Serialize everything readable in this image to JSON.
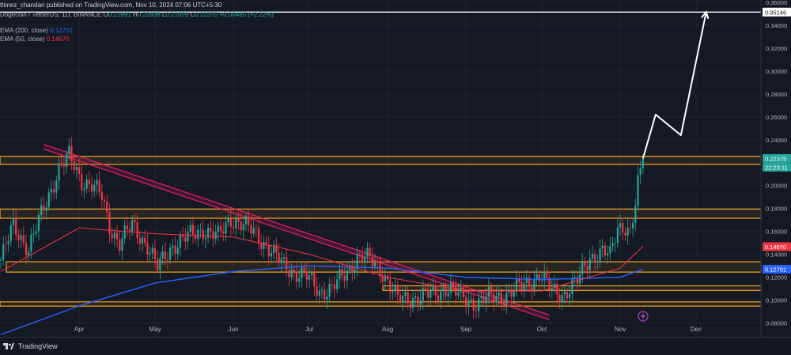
{
  "header": {
    "publisher_line": "ttimez_chandan published on TradingView.com, Nov 10, 2024 07:06 UTC+5:30",
    "symbol": "Dogecoin / TetherUS, 1D, BINANCE",
    "open_label": "O",
    "open": "0.21891",
    "high_label": "H",
    "high": "0.22838",
    "low_label": "L",
    "low": "0.21659",
    "close_label": "C",
    "close": "0.22375",
    "change": "+0.00485 (+2.22%)",
    "ema200_label": "EMA (200, close)",
    "ema200_value": "0.12701",
    "ema50_label": "EMA (50, close)",
    "ema50_value": "0.14670"
  },
  "footer": {
    "brand": "TradingView"
  },
  "colors": {
    "background": "#151924",
    "up": "#26a69a",
    "down": "#f23645",
    "ema200": "#2962ff",
    "ema50": "#f23645",
    "zone": "#f5a623",
    "trendline": "#e91e63",
    "projection": "#ffffff"
  },
  "chart_data": {
    "type": "candlestick",
    "title": "Dogecoin / TetherUS, 1D, BINANCE",
    "y_axis": {
      "ticks": [
        "0.08000",
        "0.10000",
        "0.12000",
        "0.14000",
        "0.16000",
        "0.18000",
        "0.20000",
        "0.22000",
        "0.24000",
        "0.26000",
        "0.28000",
        "0.30000",
        "0.32000",
        "0.34000",
        "0.36000"
      ],
      "ylim": [
        0.068,
        0.362
      ]
    },
    "x_axis": {
      "ticks": [
        "Apr",
        "May",
        "Jun",
        "Jul",
        "Aug",
        "Sep",
        "Oct",
        "Nov",
        "Dec"
      ]
    },
    "price_points": [
      [
        "Mar 1",
        0.135
      ],
      [
        "Mar 6",
        0.165
      ],
      [
        "Mar 12",
        0.145
      ],
      [
        "Mar 18",
        0.18
      ],
      [
        "Mar 24",
        0.215
      ],
      [
        "Mar 28",
        0.225
      ],
      [
        "Apr 2",
        0.205
      ],
      [
        "Apr 6",
        0.2
      ],
      [
        "Apr 10",
        0.19
      ],
      [
        "Apr 13",
        0.165
      ],
      [
        "Apr 17",
        0.15
      ],
      [
        "Apr 22",
        0.165
      ],
      [
        "Apr 28",
        0.148
      ],
      [
        "May 2",
        0.128
      ],
      [
        "May 8",
        0.148
      ],
      [
        "May 14",
        0.155
      ],
      [
        "May 20",
        0.162
      ],
      [
        "May 26",
        0.155
      ],
      [
        "May 31",
        0.172
      ],
      [
        "Jun 5",
        0.165
      ],
      [
        "Jun 10",
        0.158
      ],
      [
        "Jun 15",
        0.145
      ],
      [
        "Jun 20",
        0.132
      ],
      [
        "Jun 25",
        0.125
      ],
      [
        "Jun 30",
        0.12
      ],
      [
        "Jul 5",
        0.108
      ],
      [
        "Jul 10",
        0.11
      ],
      [
        "Jul 15",
        0.122
      ],
      [
        "Jul 20",
        0.138
      ],
      [
        "Jul 25",
        0.135
      ],
      [
        "Jul 30",
        0.125
      ],
      [
        "Aug 5",
        0.1
      ],
      [
        "Aug 10",
        0.102
      ],
      [
        "Aug 15",
        0.103
      ],
      [
        "Aug 20",
        0.106
      ],
      [
        "Aug 25",
        0.112
      ],
      [
        "Aug 30",
        0.102
      ],
      [
        "Sep 5",
        0.098
      ],
      [
        "Sep 10",
        0.102
      ],
      [
        "Sep 15",
        0.104
      ],
      [
        "Sep 20",
        0.108
      ],
      [
        "Sep 25",
        0.115
      ],
      [
        "Sep 30",
        0.122
      ],
      [
        "Oct 5",
        0.108
      ],
      [
        "Oct 10",
        0.106
      ],
      [
        "Oct 15",
        0.116
      ],
      [
        "Oct 20",
        0.138
      ],
      [
        "Oct 25",
        0.142
      ],
      [
        "Oct 28",
        0.138
      ],
      [
        "Oct 31",
        0.165
      ],
      [
        "Nov 3",
        0.165
      ],
      [
        "Nov 5",
        0.158
      ],
      [
        "Nov 7",
        0.182
      ],
      [
        "Nov 8",
        0.2
      ],
      [
        "Nov 9",
        0.21
      ],
      [
        "Nov 10",
        0.2237
      ]
    ],
    "ema200": [
      [
        "Mar 1",
        0.07
      ],
      [
        "Apr 1",
        0.095
      ],
      [
        "May 1",
        0.115
      ],
      [
        "Jun 1",
        0.125
      ],
      [
        "Jul 1",
        0.13
      ],
      [
        "Aug 1",
        0.128
      ],
      [
        "Sep 1",
        0.12
      ],
      [
        "Oct 1",
        0.118
      ],
      [
        "Nov 1",
        0.12
      ],
      [
        "Nov 10",
        0.127
      ]
    ],
    "ema50": [
      [
        "Mar 1",
        0.125
      ],
      [
        "Apr 1",
        0.163
      ],
      [
        "May 1",
        0.158
      ],
      [
        "Jun 1",
        0.155
      ],
      [
        "Jul 1",
        0.14
      ],
      [
        "Aug 1",
        0.12
      ],
      [
        "Sep 1",
        0.108
      ],
      [
        "Oct 1",
        0.108
      ],
      [
        "Nov 1",
        0.128
      ],
      [
        "Nov 10",
        0.147
      ]
    ],
    "zones": [
      {
        "from": 0.2185,
        "to": 0.2255
      },
      {
        "from": 0.1715,
        "to": 0.1795
      },
      {
        "from": 0.1245,
        "to": 0.1335
      },
      {
        "from": 0.1085,
        "to": 0.1125
      },
      {
        "from": 0.0948,
        "to": 0.0985
      }
    ],
    "trendline": {
      "start": [
        "Mar 18",
        0.236
      ],
      "end": [
        "Oct 4",
        0.087
      ]
    },
    "projection": [
      [
        "Nov 10",
        0.2237
      ],
      [
        "Nov 15",
        0.262
      ],
      [
        "Nov 25",
        0.244
      ],
      [
        "Dec 5",
        0.3515
      ]
    ],
    "price_labels": [
      {
        "text": "0.35146",
        "style": "target"
      },
      {
        "text": "0.22375",
        "style": "last"
      },
      {
        "text": "22:23:11",
        "style": "countdown"
      },
      {
        "text": "0.14670",
        "style": "ema50"
      },
      {
        "text": "0.12701",
        "style": "ema200"
      }
    ]
  }
}
